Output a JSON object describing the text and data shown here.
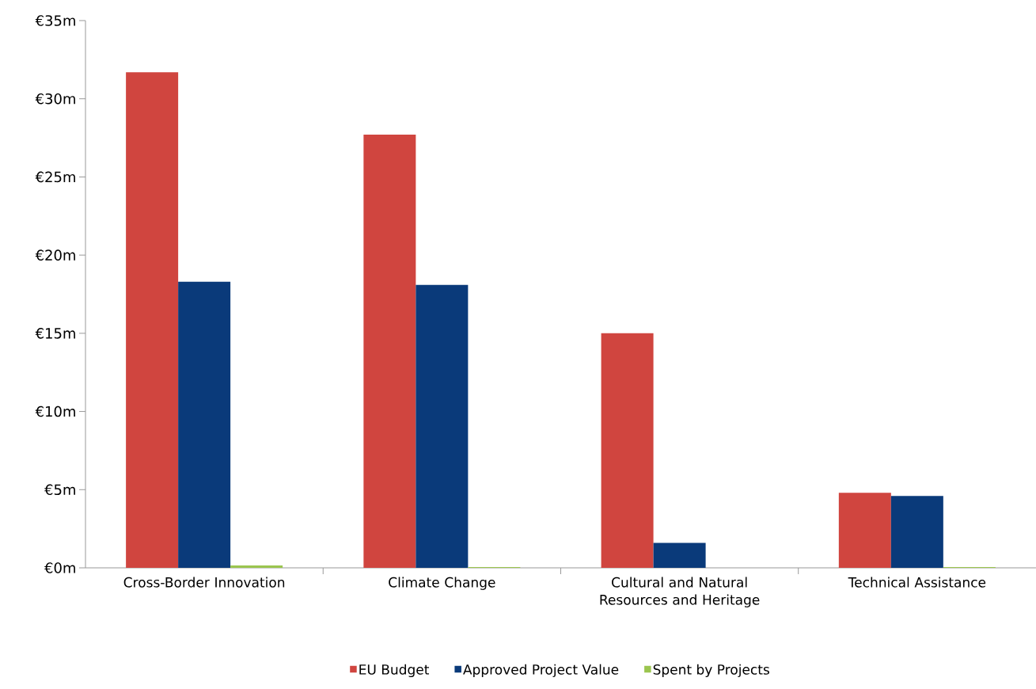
{
  "chart_data": {
    "type": "bar",
    "categories": [
      "Cross-Border Innovation",
      "Climate Change",
      "Cultural and Natural Resources and Heritage",
      "Technical Assistance"
    ],
    "series": [
      {
        "name": "EU Budget",
        "color": "#d0453f",
        "values": [
          31.7,
          27.7,
          15.0,
          4.8
        ]
      },
      {
        "name": "Approved Project Value",
        "color": "#0a3a7a",
        "values": [
          18.3,
          18.1,
          1.6,
          4.6
        ]
      },
      {
        "name": "Spent by Projects",
        "color": "#9bc54f",
        "values": [
          0.15,
          0.05,
          0,
          0.05
        ]
      }
    ],
    "ylim": [
      0,
      35
    ],
    "yticks": [
      {
        "value": 0,
        "label": "€0m"
      },
      {
        "value": 5,
        "label": "€5m"
      },
      {
        "value": 10,
        "label": "€10m"
      },
      {
        "value": 15,
        "label": "€15m"
      },
      {
        "value": 20,
        "label": "€20m"
      },
      {
        "value": 25,
        "label": "€25m"
      },
      {
        "value": 30,
        "label": "€30m"
      },
      {
        "value": 35,
        "label": "€35m"
      }
    ],
    "grid": false,
    "legend": "bottom"
  }
}
